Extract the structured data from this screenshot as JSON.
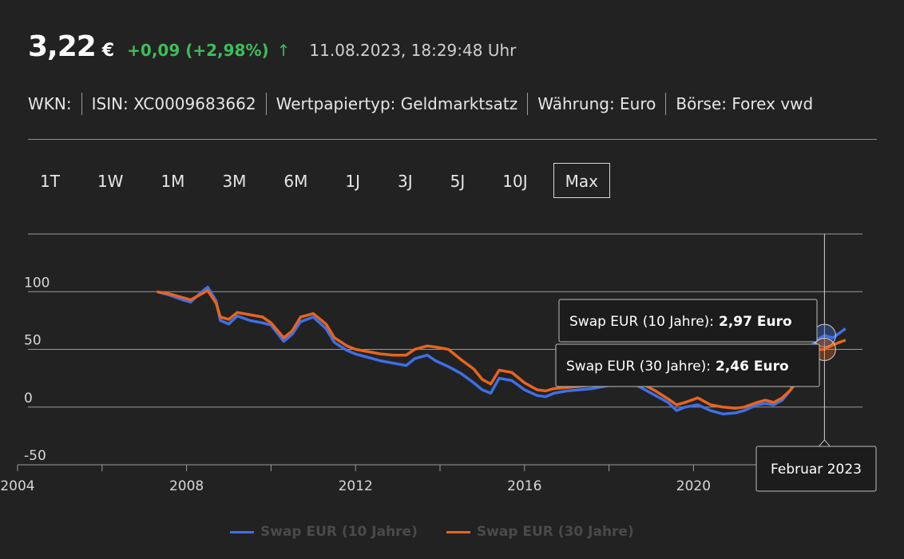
{
  "quote": {
    "price": "3,22",
    "currency": "€",
    "change": "+0,09 (+2,98%)",
    "arrow": "↑",
    "timestamp": "11.08.2023, 18:29:48 Uhr"
  },
  "meta": [
    "WKN:",
    "ISIN: XC0009683662",
    "Wertpapiertyp: Geldmarktsatz",
    "Währung: Euro",
    "Börse: Forex vwd"
  ],
  "ranges": [
    "1T",
    "1W",
    "1M",
    "3M",
    "6M",
    "1J",
    "3J",
    "5J",
    "10J",
    "Max"
  ],
  "active_range": "Max",
  "tooltip": {
    "date": "Februar 2023",
    "rows": [
      {
        "label": "Swap EUR (10 Jahre):",
        "value": "2,97 Euro"
      },
      {
        "label": "Swap EUR (30 Jahre):",
        "value": "2,46 Euro"
      }
    ]
  },
  "colors": {
    "series_10y": "#3f6fe6",
    "series_30y": "#e8641e",
    "positive": "#3dbd5a",
    "background": "#222222"
  },
  "chart_data": {
    "type": "line",
    "x_ticks": [
      2004,
      2008,
      2012,
      2016,
      2020
    ],
    "y_ticks": [
      -50,
      0,
      50,
      100
    ],
    "xlim": [
      2004,
      2024
    ],
    "ylim": [
      -50,
      150
    ],
    "grid": true,
    "legend_position": "bottom",
    "series": [
      {
        "name": "Swap EUR (10 Jahre)",
        "x": [
          2007.3,
          2007.6,
          2007.9,
          2008.1,
          2008.3,
          2008.5,
          2008.7,
          2008.8,
          2009.0,
          2009.2,
          2009.5,
          2009.8,
          2010.0,
          2010.3,
          2010.5,
          2010.7,
          2011.0,
          2011.3,
          2011.5,
          2011.8,
          2012.0,
          2012.3,
          2012.6,
          2012.9,
          2013.2,
          2013.4,
          2013.7,
          2013.9,
          2014.2,
          2014.5,
          2014.8,
          2015.0,
          2015.2,
          2015.4,
          2015.7,
          2016.0,
          2016.3,
          2016.5,
          2016.7,
          2017.0,
          2017.3,
          2017.6,
          2017.9,
          2018.2,
          2018.5,
          2018.8,
          2019.1,
          2019.4,
          2019.6,
          2019.8,
          2020.1,
          2020.4,
          2020.7,
          2021.0,
          2021.2,
          2021.5,
          2021.7,
          2021.9,
          2022.1,
          2022.3,
          2022.5,
          2022.7,
          2022.9,
          2023.1,
          2023.3,
          2023.6
        ],
        "values": [
          100,
          97,
          93,
          91,
          98,
          104,
          92,
          75,
          72,
          79,
          75,
          73,
          71,
          57,
          63,
          74,
          78,
          68,
          56,
          49,
          46,
          43,
          40,
          38,
          36,
          42,
          45,
          40,
          35,
          29,
          21,
          15,
          12,
          25,
          23,
          15,
          10,
          9,
          12,
          14,
          15,
          16,
          18,
          20,
          22,
          16,
          10,
          4,
          -3,
          0,
          2,
          -3,
          -6,
          -5,
          -3,
          2,
          3,
          2,
          6,
          15,
          35,
          48,
          58,
          62,
          60,
          68
        ]
      },
      {
        "name": "Swap EUR (30 Jahre)",
        "x": [
          2007.3,
          2007.6,
          2007.9,
          2008.1,
          2008.3,
          2008.5,
          2008.7,
          2008.8,
          2009.0,
          2009.2,
          2009.5,
          2009.8,
          2010.0,
          2010.3,
          2010.5,
          2010.7,
          2011.0,
          2011.3,
          2011.5,
          2011.8,
          2012.0,
          2012.3,
          2012.6,
          2012.9,
          2013.2,
          2013.4,
          2013.7,
          2013.9,
          2014.2,
          2014.5,
          2014.8,
          2015.0,
          2015.2,
          2015.4,
          2015.7,
          2016.0,
          2016.3,
          2016.5,
          2016.7,
          2017.0,
          2017.3,
          2017.6,
          2017.9,
          2018.2,
          2018.5,
          2018.8,
          2019.1,
          2019.4,
          2019.6,
          2019.8,
          2020.1,
          2020.4,
          2020.7,
          2021.0,
          2021.2,
          2021.5,
          2021.7,
          2021.9,
          2022.1,
          2022.3,
          2022.5,
          2022.7,
          2022.9,
          2023.1,
          2023.3,
          2023.6
        ],
        "values": [
          100,
          98,
          95,
          93,
          97,
          101,
          90,
          78,
          76,
          82,
          80,
          78,
          73,
          60,
          66,
          78,
          81,
          72,
          60,
          53,
          50,
          48,
          46,
          45,
          45,
          50,
          53,
          52,
          50,
          41,
          33,
          24,
          20,
          32,
          30,
          21,
          15,
          14,
          16,
          17,
          18,
          19,
          20,
          22,
          24,
          20,
          14,
          7,
          2,
          4,
          8,
          2,
          0,
          -1,
          0,
          4,
          6,
          4,
          8,
          15,
          25,
          40,
          50,
          50,
          54,
          58
        ]
      }
    ]
  }
}
